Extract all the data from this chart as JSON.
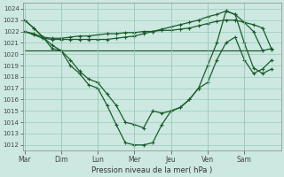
{
  "xlabel": "Pression niveau de la mer( hPa )",
  "bg_color": "#cce8e0",
  "grid_color": "#99ccbb",
  "line_color": "#1a5c2a",
  "ylim": [
    1011.5,
    1024.5
  ],
  "yticks": [
    1012,
    1013,
    1014,
    1015,
    1016,
    1017,
    1018,
    1019,
    1020,
    1021,
    1022,
    1023,
    1024
  ],
  "day_labels": [
    "Mar",
    "Dim",
    "Lun",
    "Mer",
    "Jeu",
    "Ven",
    "Sam"
  ],
  "day_positions": [
    0,
    1,
    2,
    3,
    4,
    5,
    6
  ],
  "xlim": [
    -0.05,
    7.0
  ],
  "series1": {
    "x": [
      0,
      0.25,
      0.5,
      0.75,
      1.0,
      1.25,
      1.5,
      1.75,
      2.0,
      2.25,
      2.5,
      2.75,
      3.0,
      3.25,
      3.5,
      3.75,
      4.0,
      4.25,
      4.5,
      4.75,
      5.0,
      5.25,
      5.5,
      5.75,
      6.0,
      6.25,
      6.5,
      6.75
    ],
    "y": [
      1022.0,
      1021.8,
      1021.5,
      1021.4,
      1021.4,
      1021.5,
      1021.6,
      1021.6,
      1021.7,
      1021.8,
      1021.8,
      1021.9,
      1021.9,
      1022.0,
      1022.0,
      1022.1,
      1022.1,
      1022.2,
      1022.3,
      1022.5,
      1022.7,
      1022.9,
      1023.0,
      1023.0,
      1022.8,
      1022.6,
      1022.3,
      1020.4
    ]
  },
  "series2": {
    "x": [
      0,
      0.25,
      0.5,
      0.75,
      1.0,
      1.25,
      1.5,
      1.75,
      2.0,
      2.25,
      2.5,
      2.75,
      3.0,
      3.25,
      3.5,
      3.75,
      4.0,
      4.25,
      4.5,
      4.75,
      5.0,
      5.25,
      5.5,
      5.75,
      6.0,
      6.25,
      6.5,
      6.75
    ],
    "y": [
      1022.0,
      1021.7,
      1021.4,
      1021.3,
      1021.3,
      1021.3,
      1021.3,
      1021.3,
      1021.3,
      1021.3,
      1021.4,
      1021.5,
      1021.6,
      1021.8,
      1022.0,
      1022.2,
      1022.4,
      1022.6,
      1022.8,
      1023.0,
      1023.3,
      1023.5,
      1023.8,
      1023.5,
      1022.8,
      1022.0,
      1020.3,
      1020.5
    ]
  },
  "series3": {
    "x": [
      0,
      0.5,
      1.0,
      1.5,
      2.0,
      2.5,
      3.0,
      3.5,
      4.0,
      4.5,
      5.0,
      5.5,
      6.0,
      6.5
    ],
    "y": [
      1020.3,
      1020.3,
      1020.3,
      1020.3,
      1020.3,
      1020.3,
      1020.3,
      1020.3,
      1020.3,
      1020.3,
      1020.3,
      1020.3,
      1020.3,
      1020.3
    ]
  },
  "series4": {
    "x": [
      0,
      0.25,
      0.5,
      0.75,
      1.0,
      1.25,
      1.5,
      1.75,
      2.0,
      2.25,
      2.5,
      2.75,
      3.0,
      3.25,
      3.5,
      3.75,
      4.0,
      4.25,
      4.5,
      4.75,
      5.0,
      5.25,
      5.5,
      5.75,
      6.0,
      6.25,
      6.5,
      6.75
    ],
    "y": [
      1023.0,
      1022.3,
      1021.5,
      1020.8,
      1020.3,
      1019.5,
      1018.5,
      1017.8,
      1017.5,
      1016.5,
      1015.5,
      1014.0,
      1013.8,
      1013.5,
      1015.0,
      1014.8,
      1015.0,
      1015.3,
      1016.0,
      1017.0,
      1017.5,
      1019.5,
      1021.0,
      1021.5,
      1019.5,
      1018.3,
      1018.7,
      1019.5
    ]
  },
  "series5": {
    "x": [
      0,
      0.25,
      0.5,
      0.75,
      1.0,
      1.25,
      1.5,
      1.75,
      2.0,
      2.25,
      2.5,
      2.75,
      3.0,
      3.25,
      3.5,
      3.75,
      4.0,
      4.25,
      4.5,
      4.75,
      5.0,
      5.25,
      5.5,
      5.75,
      6.0,
      6.25,
      6.5,
      6.75
    ],
    "y": [
      1023.0,
      1022.3,
      1021.5,
      1020.5,
      1020.3,
      1019.0,
      1018.3,
      1017.3,
      1017.0,
      1015.5,
      1013.8,
      1012.2,
      1012.0,
      1012.0,
      1012.2,
      1013.8,
      1015.0,
      1015.3,
      1016.0,
      1017.0,
      1019.0,
      1021.0,
      1023.8,
      1023.5,
      1021.0,
      1018.8,
      1018.3,
      1018.7
    ]
  }
}
